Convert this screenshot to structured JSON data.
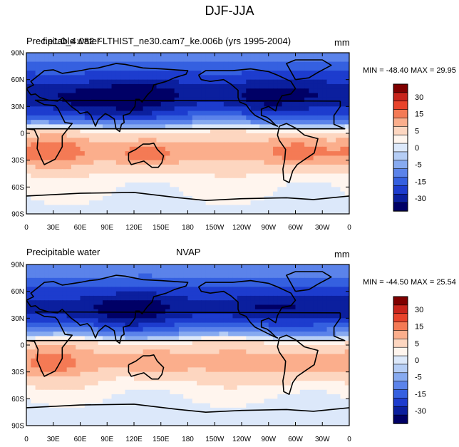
{
  "title": "DJF-JJA",
  "panel_order": [
    "top",
    "bottom"
  ],
  "panels": {
    "top": {
      "left_title": "Precipitable water",
      "center_title": "f.e1.0_4.082.FLTHIST_ne30.cam7_ke.006b (yrs 1995-2004)",
      "units": "mm",
      "min_max": "MIN = -48.40 MAX =  29.95"
    },
    "bottom": {
      "left_title": "Precipitable water",
      "center_title": "NVAP",
      "units": "mm",
      "min_max": "MIN = -44.50 MAX =  25.54"
    }
  },
  "chart_data": [
    {
      "type": "heatmap",
      "title": "Precipitable water",
      "subtitle": "f.e1.0_4.082.FLTHIST_ne30.cam7_ke.006b (yrs 1995-2004)",
      "units": "mm",
      "x_ticks": [
        "0",
        "30E",
        "60E",
        "90E",
        "120E",
        "150E",
        "180",
        "150W",
        "120W",
        "90W",
        "60W",
        "30W",
        "0"
      ],
      "y_ticks": [
        "90N",
        "60N",
        "30N",
        "0",
        "30S",
        "60S",
        "90S"
      ],
      "xlim": [
        0,
        360
      ],
      "ylim": [
        -90,
        90
      ],
      "min": -48.4,
      "max": 29.95,
      "colorbar_labels": [
        "30",
        "15",
        "5",
        "0",
        "-5",
        "-15",
        "-30"
      ],
      "colorbar_colors": [
        "#7f0000",
        "#c8241b",
        "#e8432b",
        "#f47a55",
        "#fbae8c",
        "#fdd6c0",
        "#fff5ee",
        "#dce8fa",
        "#b5cdf5",
        "#87aaf0",
        "#5b83ea",
        "#3560e0",
        "#1d3cce",
        "#0b1f9e",
        "#000066"
      ],
      "lat_profile": [
        [
          90,
          -6
        ],
        [
          70,
          -14
        ],
        [
          55,
          -22
        ],
        [
          45,
          -28
        ],
        [
          35,
          -24
        ],
        [
          22,
          -14
        ],
        [
          10,
          -3
        ],
        [
          5,
          2
        ],
        [
          -5,
          6
        ],
        [
          -15,
          9
        ],
        [
          -25,
          10
        ],
        [
          -35,
          6
        ],
        [
          -50,
          3
        ],
        [
          -70,
          2
        ],
        [
          -90,
          1
        ]
      ],
      "hotspots": [
        {
          "lon": 25,
          "lat": -20,
          "value": 18
        },
        {
          "lon": 135,
          "lat": -22,
          "value": 20
        },
        {
          "lon": 305,
          "lat": -20,
          "value": 20
        },
        {
          "lon": 120,
          "lat": 38,
          "value": -38
        },
        {
          "lon": 268,
          "lat": 38,
          "value": -34
        },
        {
          "lon": 60,
          "lat": 30,
          "value": -30
        }
      ]
    },
    {
      "type": "heatmap",
      "title": "Precipitable water",
      "subtitle": "NVAP",
      "units": "mm",
      "x_ticks": [
        "0",
        "30E",
        "60E",
        "90E",
        "120E",
        "150E",
        "180",
        "150W",
        "120W",
        "90W",
        "60W",
        "30W",
        "0"
      ],
      "y_ticks": [
        "90N",
        "60N",
        "30N",
        "0",
        "30S",
        "60S",
        "90S"
      ],
      "xlim": [
        0,
        360
      ],
      "ylim": [
        -90,
        90
      ],
      "min": -44.5,
      "max": 25.54,
      "colorbar_labels": [
        "30",
        "15",
        "5",
        "0",
        "-5",
        "-15",
        "-30"
      ],
      "colorbar_colors": [
        "#7f0000",
        "#c8241b",
        "#e8432b",
        "#f47a55",
        "#fbae8c",
        "#fdd6c0",
        "#fff5ee",
        "#dce8fa",
        "#b5cdf5",
        "#87aaf0",
        "#5b83ea",
        "#3560e0",
        "#1d3cce",
        "#0b1f9e",
        "#000066"
      ],
      "lat_profile": [
        [
          90,
          -5
        ],
        [
          70,
          -12
        ],
        [
          55,
          -20
        ],
        [
          45,
          -27
        ],
        [
          35,
          -24
        ],
        [
          22,
          -12
        ],
        [
          10,
          -2
        ],
        [
          5,
          3
        ],
        [
          -5,
          7
        ],
        [
          -15,
          9
        ],
        [
          -25,
          9
        ],
        [
          -35,
          5
        ],
        [
          -50,
          3
        ],
        [
          -70,
          1
        ],
        [
          -90,
          1
        ]
      ],
      "hotspots": [
        {
          "lon": 25,
          "lat": -20,
          "value": 16
        },
        {
          "lon": 140,
          "lat": -18,
          "value": 16
        },
        {
          "lon": 300,
          "lat": -22,
          "value": 16
        },
        {
          "lon": 115,
          "lat": 35,
          "value": -36
        },
        {
          "lon": 265,
          "lat": 38,
          "value": -30
        },
        {
          "lon": 50,
          "lat": 35,
          "value": -26
        }
      ]
    }
  ]
}
